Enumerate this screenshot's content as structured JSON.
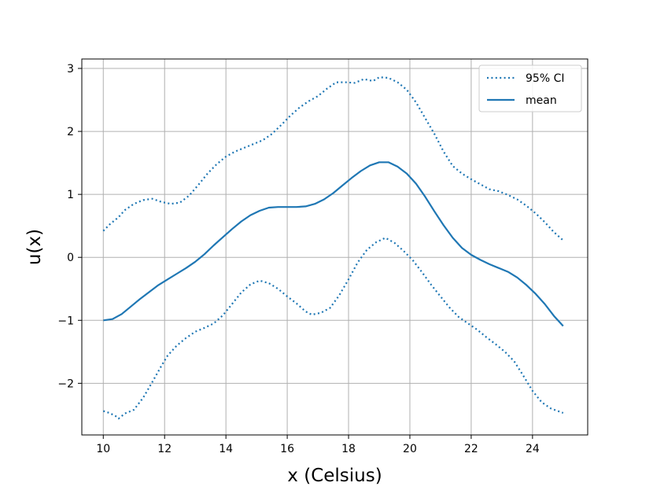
{
  "colors": {
    "series": "#1f77b4",
    "grid": "#b0b0b0",
    "axes": "#000000",
    "background": "#ffffff"
  },
  "chart_data": {
    "type": "line",
    "xlabel": "x (Celsius)",
    "ylabel": "u(x)",
    "xlim": [
      9.3,
      25.8
    ],
    "ylim": [
      -2.82,
      3.15
    ],
    "grid": true,
    "legend_position": "top-right",
    "xticks": [
      10,
      12,
      14,
      16,
      18,
      20,
      22,
      24
    ],
    "yticks": [
      -2,
      -1,
      0,
      1,
      2,
      3
    ],
    "ytick_labels": [
      "−2",
      "−1",
      "0",
      "1",
      "2",
      "3"
    ],
    "series": [
      {
        "name": "95% CI",
        "style": "dotted",
        "points": [
          [
            10.0,
            0.42
          ],
          [
            10.2,
            0.52
          ],
          [
            10.5,
            0.64
          ],
          [
            10.7,
            0.75
          ],
          [
            11.0,
            0.85
          ],
          [
            11.3,
            0.91
          ],
          [
            11.6,
            0.93
          ],
          [
            11.9,
            0.88
          ],
          [
            12.2,
            0.85
          ],
          [
            12.5,
            0.87
          ],
          [
            12.8,
            0.98
          ],
          [
            13.1,
            1.15
          ],
          [
            13.4,
            1.33
          ],
          [
            13.7,
            1.48
          ],
          [
            14.0,
            1.6
          ],
          [
            14.3,
            1.68
          ],
          [
            14.6,
            1.74
          ],
          [
            14.9,
            1.8
          ],
          [
            15.2,
            1.86
          ],
          [
            15.5,
            1.96
          ],
          [
            15.8,
            2.1
          ],
          [
            16.1,
            2.25
          ],
          [
            16.4,
            2.38
          ],
          [
            16.7,
            2.48
          ],
          [
            17.0,
            2.56
          ],
          [
            17.3,
            2.68
          ],
          [
            17.6,
            2.78
          ],
          [
            17.9,
            2.78
          ],
          [
            18.2,
            2.77
          ],
          [
            18.5,
            2.83
          ],
          [
            18.8,
            2.8
          ],
          [
            19.0,
            2.86
          ],
          [
            19.3,
            2.85
          ],
          [
            19.6,
            2.78
          ],
          [
            19.9,
            2.66
          ],
          [
            20.2,
            2.46
          ],
          [
            20.5,
            2.21
          ],
          [
            20.8,
            1.96
          ],
          [
            21.1,
            1.68
          ],
          [
            21.4,
            1.45
          ],
          [
            21.7,
            1.33
          ],
          [
            22.0,
            1.24
          ],
          [
            22.3,
            1.16
          ],
          [
            22.6,
            1.08
          ],
          [
            22.9,
            1.05
          ],
          [
            23.2,
            0.99
          ],
          [
            23.5,
            0.92
          ],
          [
            23.8,
            0.82
          ],
          [
            24.1,
            0.7
          ],
          [
            24.4,
            0.56
          ],
          [
            24.7,
            0.4
          ],
          [
            25.0,
            0.27
          ]
        ]
      },
      {
        "name": "",
        "style": "dotted",
        "points": [
          [
            10.0,
            -2.44
          ],
          [
            10.2,
            -2.47
          ],
          [
            10.4,
            -2.52
          ],
          [
            10.5,
            -2.56
          ],
          [
            10.7,
            -2.48
          ],
          [
            11.0,
            -2.42
          ],
          [
            11.3,
            -2.23
          ],
          [
            11.6,
            -1.98
          ],
          [
            11.9,
            -1.72
          ],
          [
            12.1,
            -1.56
          ],
          [
            12.4,
            -1.4
          ],
          [
            12.7,
            -1.28
          ],
          [
            13.0,
            -1.18
          ],
          [
            13.3,
            -1.12
          ],
          [
            13.6,
            -1.05
          ],
          [
            13.9,
            -0.92
          ],
          [
            14.2,
            -0.74
          ],
          [
            14.5,
            -0.56
          ],
          [
            14.8,
            -0.43
          ],
          [
            15.1,
            -0.37
          ],
          [
            15.4,
            -0.41
          ],
          [
            15.7,
            -0.5
          ],
          [
            16.0,
            -0.62
          ],
          [
            16.3,
            -0.73
          ],
          [
            16.6,
            -0.86
          ],
          [
            16.8,
            -0.91
          ],
          [
            17.1,
            -0.88
          ],
          [
            17.4,
            -0.8
          ],
          [
            17.7,
            -0.6
          ],
          [
            18.0,
            -0.35
          ],
          [
            18.3,
            -0.08
          ],
          [
            18.6,
            0.12
          ],
          [
            18.9,
            0.24
          ],
          [
            19.2,
            0.31
          ],
          [
            19.5,
            0.23
          ],
          [
            19.8,
            0.1
          ],
          [
            20.1,
            -0.05
          ],
          [
            20.4,
            -0.24
          ],
          [
            20.7,
            -0.44
          ],
          [
            21.0,
            -0.62
          ],
          [
            21.3,
            -0.8
          ],
          [
            21.6,
            -0.95
          ],
          [
            21.9,
            -1.05
          ],
          [
            22.2,
            -1.15
          ],
          [
            22.5,
            -1.27
          ],
          [
            22.8,
            -1.38
          ],
          [
            23.1,
            -1.5
          ],
          [
            23.4,
            -1.65
          ],
          [
            23.7,
            -1.88
          ],
          [
            24.0,
            -2.12
          ],
          [
            24.3,
            -2.3
          ],
          [
            24.6,
            -2.4
          ],
          [
            25.0,
            -2.47
          ]
        ]
      },
      {
        "name": "mean",
        "style": "solid",
        "points": [
          [
            10.0,
            -1.0
          ],
          [
            10.3,
            -0.98
          ],
          [
            10.6,
            -0.9
          ],
          [
            10.9,
            -0.78
          ],
          [
            11.2,
            -0.66
          ],
          [
            11.5,
            -0.55
          ],
          [
            11.8,
            -0.44
          ],
          [
            12.1,
            -0.35
          ],
          [
            12.4,
            -0.26
          ],
          [
            12.7,
            -0.17
          ],
          [
            13.0,
            -0.07
          ],
          [
            13.3,
            0.05
          ],
          [
            13.6,
            0.19
          ],
          [
            13.9,
            0.32
          ],
          [
            14.2,
            0.45
          ],
          [
            14.5,
            0.57
          ],
          [
            14.8,
            0.67
          ],
          [
            15.1,
            0.74
          ],
          [
            15.4,
            0.79
          ],
          [
            15.7,
            0.8
          ],
          [
            16.0,
            0.8
          ],
          [
            16.3,
            0.8
          ],
          [
            16.6,
            0.81
          ],
          [
            16.9,
            0.85
          ],
          [
            17.2,
            0.92
          ],
          [
            17.5,
            1.02
          ],
          [
            17.8,
            1.14
          ],
          [
            18.1,
            1.26
          ],
          [
            18.4,
            1.37
          ],
          [
            18.7,
            1.46
          ],
          [
            19.0,
            1.51
          ],
          [
            19.3,
            1.51
          ],
          [
            19.6,
            1.44
          ],
          [
            19.9,
            1.33
          ],
          [
            20.2,
            1.17
          ],
          [
            20.5,
            0.96
          ],
          [
            20.8,
            0.73
          ],
          [
            21.1,
            0.51
          ],
          [
            21.4,
            0.31
          ],
          [
            21.7,
            0.15
          ],
          [
            22.0,
            0.04
          ],
          [
            22.3,
            -0.04
          ],
          [
            22.6,
            -0.11
          ],
          [
            22.9,
            -0.17
          ],
          [
            23.2,
            -0.23
          ],
          [
            23.5,
            -0.32
          ],
          [
            23.8,
            -0.44
          ],
          [
            24.1,
            -0.58
          ],
          [
            24.4,
            -0.74
          ],
          [
            24.7,
            -0.93
          ],
          [
            25.0,
            -1.09
          ]
        ]
      }
    ],
    "legend": [
      {
        "label": "95% CI",
        "style": "dotted"
      },
      {
        "label": "mean",
        "style": "solid"
      }
    ]
  }
}
